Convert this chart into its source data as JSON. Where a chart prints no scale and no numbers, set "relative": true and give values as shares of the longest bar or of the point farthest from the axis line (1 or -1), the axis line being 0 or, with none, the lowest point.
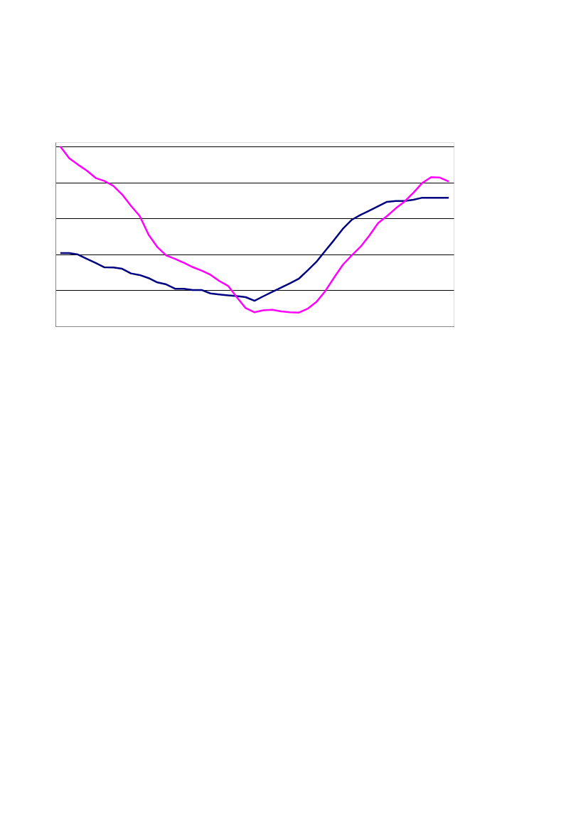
{
  "chart_data": {
    "type": "line",
    "relative": true,
    "grid": "y",
    "categories": [
      null,
      null,
      null,
      null,
      null,
      null,
      null,
      null,
      null,
      null,
      null,
      null,
      null,
      null,
      null,
      null,
      null,
      null,
      null,
      null,
      null,
      null,
      null,
      null,
      null,
      null,
      null,
      null,
      null,
      null,
      null,
      null,
      null,
      null,
      null,
      null,
      null,
      null,
      null,
      null,
      null,
      null,
      null,
      null,
      null
    ],
    "series": [
      {
        "color": "#000080",
        "values": [
          0.407,
          0.407,
          0.399,
          0.375,
          0.352,
          0.328,
          0.327,
          0.32,
          0.294,
          0.285,
          0.268,
          0.244,
          0.233,
          0.209,
          0.209,
          0.202,
          0.202,
          0.183,
          0.177,
          0.172,
          0.168,
          0.162,
          0.142,
          0.167,
          0.191,
          0.215,
          0.239,
          0.264,
          0.31,
          0.358,
          0.419,
          0.479,
          0.542,
          0.592,
          0.619,
          0.643,
          0.668,
          0.692,
          0.697,
          0.697,
          0.704,
          0.715,
          0.715,
          0.715,
          0.715
        ]
      },
      {
        "color": "#ff00ff",
        "values": [
          1.0,
          0.935,
          0.899,
          0.866,
          0.825,
          0.808,
          0.781,
          0.733,
          0.67,
          0.613,
          0.509,
          0.44,
          0.394,
          0.375,
          0.353,
          0.329,
          0.31,
          0.287,
          0.252,
          0.225,
          0.161,
          0.101,
          0.078,
          0.089,
          0.092,
          0.083,
          0.078,
          0.076,
          0.097,
          0.135,
          0.195,
          0.27,
          0.342,
          0.394,
          0.442,
          0.504,
          0.574,
          0.613,
          0.656,
          0.694,
          0.743,
          0.797,
          0.829,
          0.827,
          0.805
        ]
      }
    ]
  }
}
